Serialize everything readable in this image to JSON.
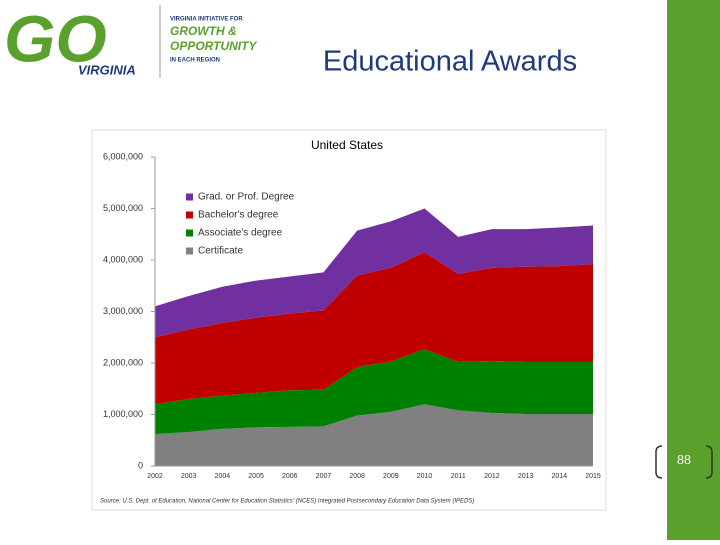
{
  "slide": {
    "title": "Educational Awards",
    "page_number": "88",
    "logo": {
      "mark": "GO",
      "state": "VIRGINIA",
      "line1": "VIRGINIA INITIATIVE FOR",
      "line2": "GROWTH &",
      "line3": "OPPORTUNITY",
      "line4": "IN EACH REGION"
    }
  },
  "chart_data": {
    "type": "stacked-area",
    "title": "United States",
    "categories": [
      "2002",
      "2003",
      "2004",
      "2005",
      "2006",
      "2007",
      "2008",
      "2009",
      "2010",
      "2011",
      "2012",
      "2013",
      "2014",
      "2015"
    ],
    "series": [
      {
        "name": "Grad. or Prof. Degree",
        "color": "#7030a0",
        "values": [
          600000,
          650000,
          700000,
          720000,
          720000,
          740000,
          870000,
          900000,
          850000,
          720000,
          750000,
          730000,
          750000,
          750000
        ]
      },
      {
        "name": "Bachelor's degree",
        "color": "#c00000",
        "values": [
          1300000,
          1350000,
          1410000,
          1460000,
          1490000,
          1540000,
          1780000,
          1820000,
          1880000,
          1710000,
          1810000,
          1850000,
          1860000,
          1900000
        ]
      },
      {
        "name": "Associate's degree",
        "color": "#008000",
        "values": [
          580000,
          640000,
          650000,
          670000,
          710000,
          710000,
          940000,
          980000,
          1070000,
          940000,
          1010000,
          1010000,
          1010000,
          1010000
        ]
      },
      {
        "name": "Certificate",
        "color": "#808080",
        "values": [
          620000,
          660000,
          720000,
          750000,
          760000,
          770000,
          980000,
          1050000,
          1200000,
          1080000,
          1030000,
          1010000,
          1010000,
          1010000
        ]
      }
    ],
    "ylim": [
      0,
      6000000
    ],
    "yticks": [
      0,
      {
        "value": 1000000,
        "label": "1,000,000"
      },
      {
        "value": 2000000,
        "label": "2,000,000"
      },
      {
        "value": 3000000,
        "label": "3,000,000"
      },
      {
        "value": 4000000,
        "label": "4,000,000"
      },
      {
        "value": 5000000,
        "label": "5,000,000"
      },
      {
        "value": 6000000,
        "label": "6,000,000"
      }
    ],
    "grid": false,
    "legend": "top-left",
    "source": "Source: U.S. Dept. of Education, National Center for Education Statistics' (NCES) Integrated Postsecondary Education Data System (IPEDS)"
  }
}
